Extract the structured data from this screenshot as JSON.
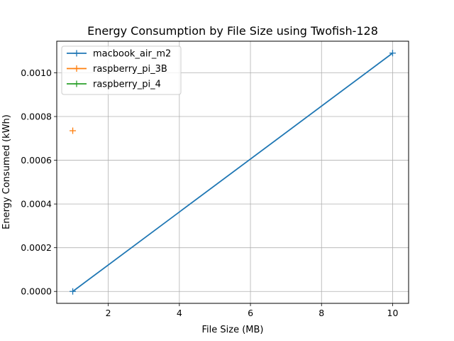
{
  "chart_data": {
    "type": "line",
    "title": "Energy Consumption by File Size using Twofish-128",
    "xlabel": "File Size (MB)",
    "ylabel": "Energy Consumed (kWh)",
    "xlim": [
      0.55,
      10.45
    ],
    "ylim": [
      -5.45e-05,
      0.0011445
    ],
    "x_ticks": [
      2,
      4,
      6,
      8,
      10
    ],
    "x_tick_labels": [
      "2",
      "4",
      "6",
      "8",
      "10"
    ],
    "y_ticks": [
      0.0,
      0.0002,
      0.0004,
      0.0006,
      0.0008,
      0.001
    ],
    "y_tick_labels": [
      "0.0000",
      "0.0002",
      "0.0004",
      "0.0006",
      "0.0008",
      "0.0010"
    ],
    "grid": true,
    "legend_position": "top-left",
    "series": [
      {
        "name": "macbook_air_m2",
        "color": "#1f77b4",
        "marker": "+",
        "x": [
          1,
          10
        ],
        "y": [
          0.0,
          0.00109
        ]
      },
      {
        "name": "raspberry_pi_3B",
        "color": "#ff7f0e",
        "marker": "+",
        "x": [
          1
        ],
        "y": [
          0.000735
        ]
      },
      {
        "name": "raspberry_pi_4",
        "color": "#2ca02c",
        "marker": "+",
        "x": [],
        "y": []
      }
    ]
  }
}
